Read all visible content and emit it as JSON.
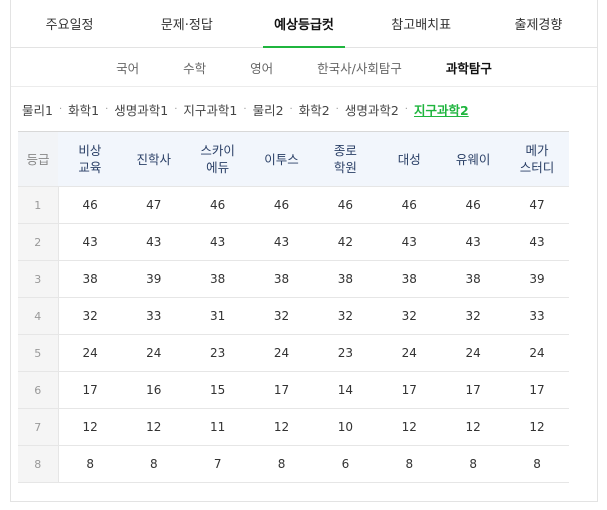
{
  "tabs": [
    "주요일정",
    "문제·정답",
    "예상등급컷",
    "참고배치표",
    "출제경향"
  ],
  "active_tab": 2,
  "subtabs": [
    "국어",
    "수학",
    "영어",
    "한국사/사회탐구",
    "과학탐구"
  ],
  "active_subtab": 4,
  "subjects": [
    "물리1",
    "화학1",
    "생명과학1",
    "지구과학1",
    "물리2",
    "화학2",
    "생명과학2",
    "지구과학2"
  ],
  "active_subject": 7,
  "accent_color": "#1fb53e",
  "table": {
    "grade_header": "등급",
    "columns": [
      [
        "비상",
        "교육"
      ],
      [
        "진학사"
      ],
      [
        "스카이",
        "에듀"
      ],
      [
        "이투스"
      ],
      [
        "종로",
        "학원"
      ],
      [
        "대성"
      ],
      [
        "유웨이"
      ],
      [
        "메가",
        "스터디"
      ]
    ],
    "rows": [
      {
        "grade": "1",
        "values": [
          "46",
          "47",
          "46",
          "46",
          "46",
          "46",
          "46",
          "47"
        ]
      },
      {
        "grade": "2",
        "values": [
          "43",
          "43",
          "43",
          "43",
          "42",
          "43",
          "43",
          "43"
        ]
      },
      {
        "grade": "3",
        "values": [
          "38",
          "39",
          "38",
          "38",
          "38",
          "38",
          "38",
          "39"
        ]
      },
      {
        "grade": "4",
        "values": [
          "32",
          "33",
          "31",
          "32",
          "32",
          "32",
          "32",
          "33"
        ]
      },
      {
        "grade": "5",
        "values": [
          "24",
          "24",
          "23",
          "24",
          "23",
          "24",
          "24",
          "24"
        ]
      },
      {
        "grade": "6",
        "values": [
          "17",
          "16",
          "15",
          "17",
          "14",
          "17",
          "17",
          "17"
        ]
      },
      {
        "grade": "7",
        "values": [
          "12",
          "12",
          "11",
          "12",
          "10",
          "12",
          "12",
          "12"
        ]
      },
      {
        "grade": "8",
        "values": [
          "8",
          "8",
          "7",
          "8",
          "6",
          "8",
          "8",
          "8"
        ]
      }
    ]
  }
}
